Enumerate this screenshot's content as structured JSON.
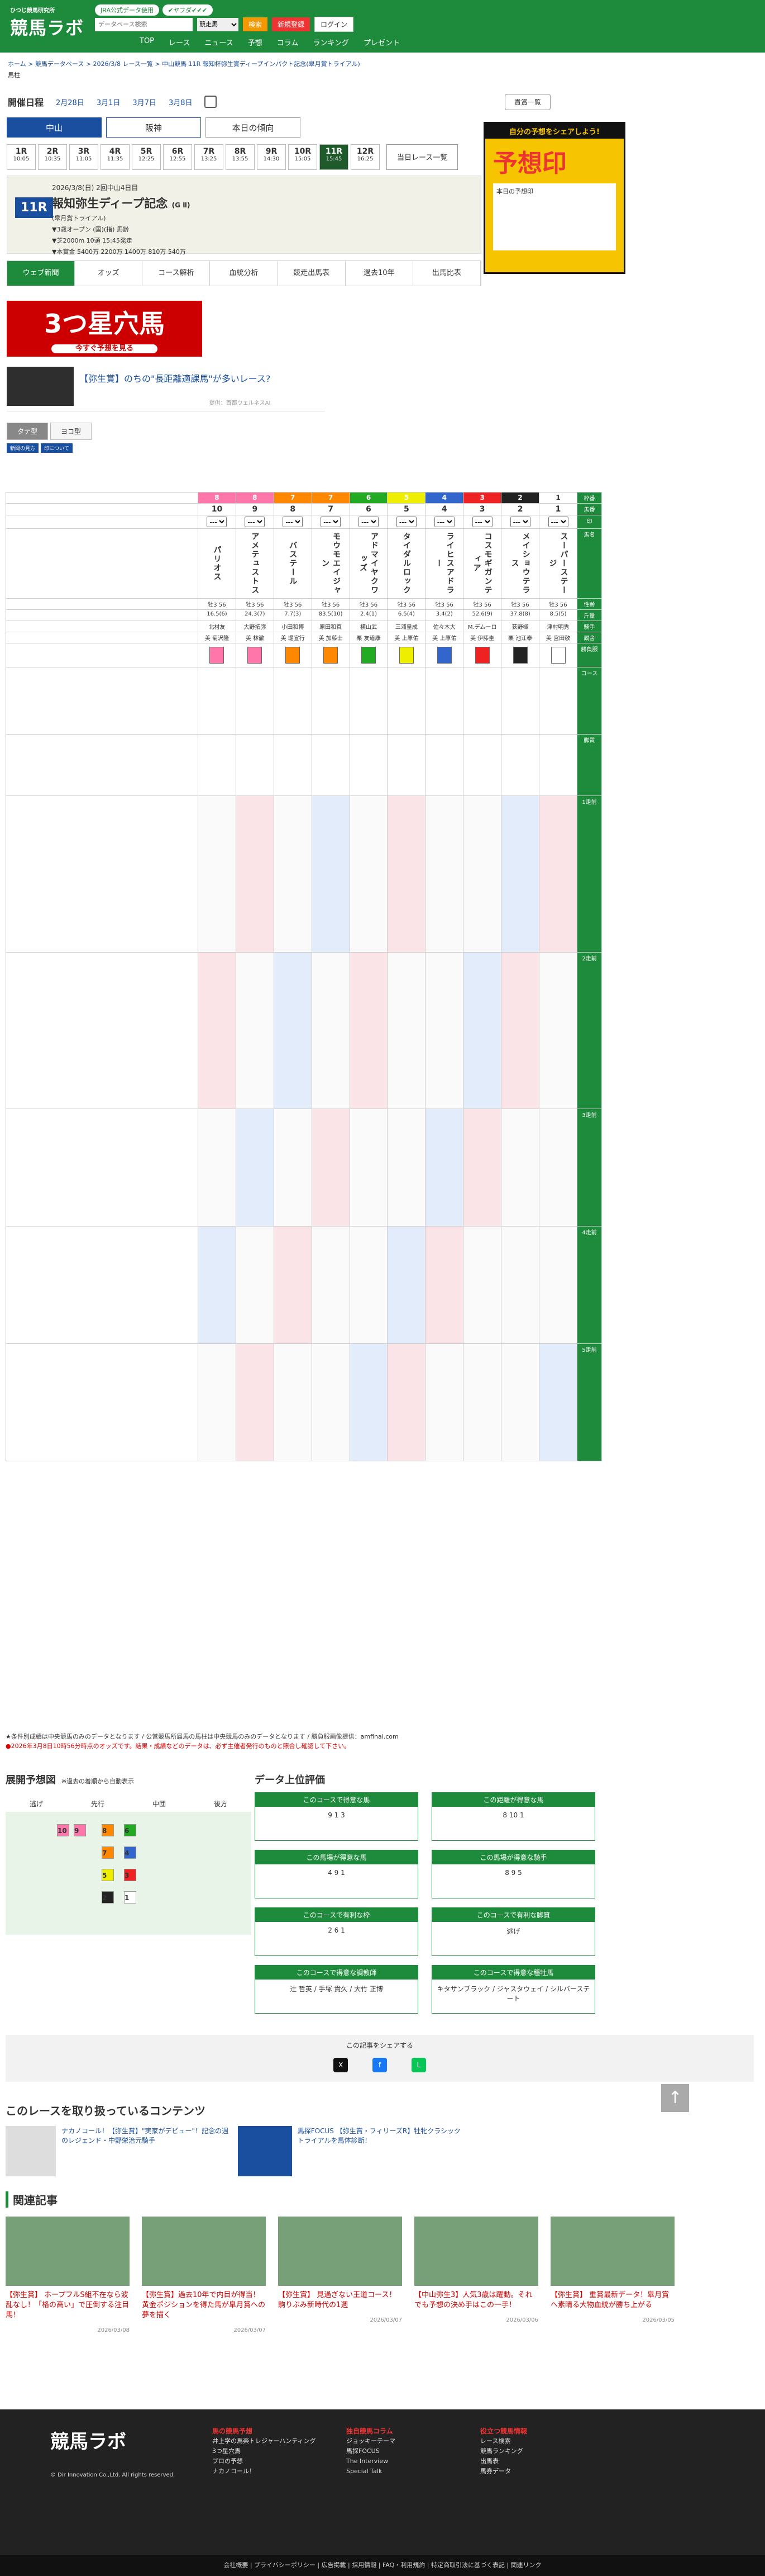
{
  "header": {
    "logo_sub": "ひつじ競馬研究所",
    "logo_main": "競馬ラボ",
    "links": [
      "JRA公式データ使用",
      "✔ヤフダ✔✔✔"
    ],
    "search_placeholder": "データベース検索",
    "search_scope": "競走馬",
    "search_button": "検索",
    "register_button": "新規登録",
    "login_button": "ログイン",
    "nav": [
      "TOP",
      "レース",
      "ニュース",
      "予想",
      "コラム",
      "ランキング",
      "プレゼント"
    ]
  },
  "breadcrumb": "ホーム > 競馬データベース > 2026/3/8 レース一覧 > 中山競馬 11R 報知杯弥生賞ディープインパクト記念(皐月賞トライアル)",
  "sub_crumb": "馬柱",
  "kaisai": {
    "label": "開催日程",
    "dates": [
      "2月28日",
      "3月1日",
      "3月7日",
      "3月8日"
    ],
    "shout_button": "貴賞一覧"
  },
  "venue_tabs": [
    "中山",
    "阪神"
  ],
  "today_btn": "本日の傾向",
  "races": [
    {
      "num": "1R",
      "time": "10:05"
    },
    {
      "num": "2R",
      "time": "10:35"
    },
    {
      "num": "3R",
      "time": "11:05"
    },
    {
      "num": "4R",
      "time": "11:35"
    },
    {
      "num": "5R",
      "time": "12:25"
    },
    {
      "num": "6R",
      "time": "12:55"
    },
    {
      "num": "7R",
      "time": "13:25"
    },
    {
      "num": "8R",
      "time": "13:55"
    },
    {
      "num": "9R",
      "time": "14:30"
    },
    {
      "num": "10R",
      "time": "15:05"
    },
    {
      "num": "11R",
      "time": "15:45"
    },
    {
      "num": "12R",
      "time": "16:25"
    }
  ],
  "today_races_btn": "当日レース一覧",
  "race": {
    "badge": "11R",
    "date": "2026/3/8(日) 2回中山4日目",
    "name": "報知弥生ディープ記念",
    "grade": "(G Ⅱ)",
    "sub": "(皐月賞トライアル)",
    "cond": "▼3歳オープン (国)(指) 馬齢",
    "course": "▼芝2000m 10頭 15:45発走",
    "prize": "▼本賞金 5400万 2200万 1400万 810万 540万"
  },
  "subtabs": [
    "ウェブ新聞",
    "オッズ",
    "コース解析",
    "血統分析",
    "競走出馬表",
    "過去10年",
    "出馬比表"
  ],
  "banner_main": "3つ星穴馬",
  "banner_sub": "今すぐ予想を見る",
  "ad_text": "【弥生賞】のちの\"長距離適課馬\"が多いレース?",
  "ad_sponsor": "提供：首都ウェルネスAI",
  "switch": [
    "タテ型",
    "ヨコ型"
  ],
  "mini_tags": [
    "新聞の見方",
    "印について"
  ],
  "right_ad": {
    "head": "自分の予想をシェアしよう!",
    "big": "予想印",
    "box": "本日の予想印"
  },
  "table": {
    "row_labels": [
      "枠番",
      "馬番",
      "印",
      "馬名",
      "性齢",
      "斤量",
      "騎手",
      "厩舎",
      "勝負服",
      "コース",
      "脚質",
      "1走前",
      "2走前",
      "3走前",
      "4走前",
      "5走前"
    ],
    "wakus": [
      "8",
      "8",
      "7",
      "7",
      "6",
      "5",
      "4",
      "3",
      "2",
      "1"
    ],
    "waku_colors": [
      "#f7a",
      "#f7a",
      "#f80",
      "#f80",
      "#2a2",
      "#ee0",
      "#36c",
      "#e22",
      "#222",
      "#fff"
    ],
    "numbers": [
      "10",
      "9",
      "8",
      "7",
      "6",
      "5",
      "4",
      "3",
      "2",
      "1"
    ],
    "horses": [
      "パリオス",
      "アメテュストス",
      "バステール",
      "モウモエイジャン",
      "アドマイヤクワッズ",
      "タイダルロック",
      "ライヒスアドラー",
      "コスモギガンティア",
      "メイショウテラス",
      "スーパーステージ"
    ],
    "sexage": [
      "牡3 56",
      "牡3 56",
      "牡3 56",
      "牡3 56",
      "牡3 56",
      "牡3 56",
      "牡3 56",
      "牡3 56",
      "牡3 56",
      "牡3 56"
    ],
    "odds": [
      "16.5(6)",
      "24.3(7)",
      "7.7(3)",
      "83.5(10)",
      "2.4(1)",
      "6.5(4)",
      "3.4(2)",
      "52.6(9)",
      "37.8(8)",
      "8.5(5)"
    ],
    "jockeys": [
      "北村友",
      "大野拓弥",
      "小田和博",
      "原田和真",
      "横山武",
      "三浦皇成",
      "佐々木大",
      "M.デムーロ",
      "荻野極",
      "津村明秀"
    ],
    "trainers": [
      "美 菊沢隆",
      "美 林徹",
      "美 堀宣行",
      "美 加藤士",
      "栗 友道康",
      "美 上原佑",
      "美 上原佑",
      "美 伊藤圭",
      "栗 池江泰",
      "美 宮田敬"
    ]
  },
  "notes": [
    "★条件別成績は中央競馬のみのデータとなります / 公営競馬所属馬の馬柱は中央競馬のみのデータとなります / 勝負服画像提供：amfinal.com",
    "●2026年3月8日10時56分時点のオッズです。結果・成績などのデータは、必ず主催者発行のものと照合し確認して下さい。"
  ],
  "tenkai": {
    "title": "展開予想図",
    "note": "※過去の着順から自動表示",
    "cols": [
      "逃げ",
      "先行",
      "中団",
      "後方"
    ],
    "chips": [
      "10",
      "9",
      "8",
      "6",
      "7",
      "4",
      "5",
      "3",
      "2",
      "1"
    ]
  },
  "ranking": {
    "title": "データ上位評価",
    "cards": [
      {
        "head": "このコースで得意な馬",
        "body": "9  1  3"
      },
      {
        "head": "この距離が得意な馬",
        "body": "8  10  1"
      },
      {
        "head": "この馬場が得意な馬",
        "body": "4  9  1"
      },
      {
        "head": "この馬場が得意な騎手",
        "body": "8  9  5"
      },
      {
        "head": "このコースで有利な枠",
        "body": "2  6  1"
      },
      {
        "head": "このコースで有利な脚質",
        "body": "逃げ"
      },
      {
        "head": "このコースで得意な調教師",
        "body": "辻 哲英 / 手塚 貴久 / 大竹 正博"
      },
      {
        "head": "このコースで得意な種牡馬",
        "body": "キタサンブラック / ジャスタウェイ / シルバーステート"
      }
    ]
  },
  "share_title": "この記事をシェアする",
  "related_title": "このレースを取り扱っているコンテンツ",
  "related": [
    {
      "text": "ナカノコール！【弥生賞】\"実家がデビュー\"！記念の週のレジェンド・中野栄治元騎手"
    },
    {
      "text": "馬探FOCUS 【弥生賞・フィリーズR】牡牝クラシックトライアルを馬体診断！"
    }
  ],
  "kanren_title": "関連記事",
  "kanren": [
    {
      "title": "【弥生賞】 ホープフルS組不在なら波乱なし！「格の高い」で圧倒する注目馬！",
      "meta": "2026/03/08"
    },
    {
      "title": "【弥生賞】過去10年で内目が得当！黄金ポジションを得た馬が皐月賞への夢を描く",
      "meta": "2026/03/07"
    },
    {
      "title": "【弥生賞】 見過ぎない王道コース！駒りぶみ新時代の1週",
      "meta": "2026/03/07"
    },
    {
      "title": "【中山弥生3】人気3歳は躍動。それでも予想の決め手はこの一手！",
      "meta": "2026/03/06"
    },
    {
      "title": "【弥生賞】 重賞最新データ！皐月賞へ素晴る大物血統が勝ち上がる",
      "meta": "2026/03/05"
    }
  ],
  "footer": {
    "logo": "競馬ラボ",
    "copy": "© Dir Innovation Co.,Ltd. All rights reserved.",
    "cols": [
      {
        "h": "馬の競馬予想",
        "items": [
          "井上学の馬楽トレジャーハンティング",
          "3つ星穴馬",
          "プロの予想",
          "ナカノコール！"
        ]
      },
      {
        "h": "独自競馬コラム",
        "items": [
          "ジョッキーテーマ",
          "馬探FOCUS",
          "The Interview",
          "Special Talk"
        ]
      },
      {
        "h": "役立つ競馬情報",
        "items": [
          "レース検索",
          "競馬ランキング",
          "出馬表",
          "馬券データ"
        ]
      }
    ],
    "links": "会社概要 | プライバシーポリシー | 広告掲載 | 採用情報 | FAQ・利用規約 | 特定商取引法に基づく表記 | 関連リンク"
  }
}
